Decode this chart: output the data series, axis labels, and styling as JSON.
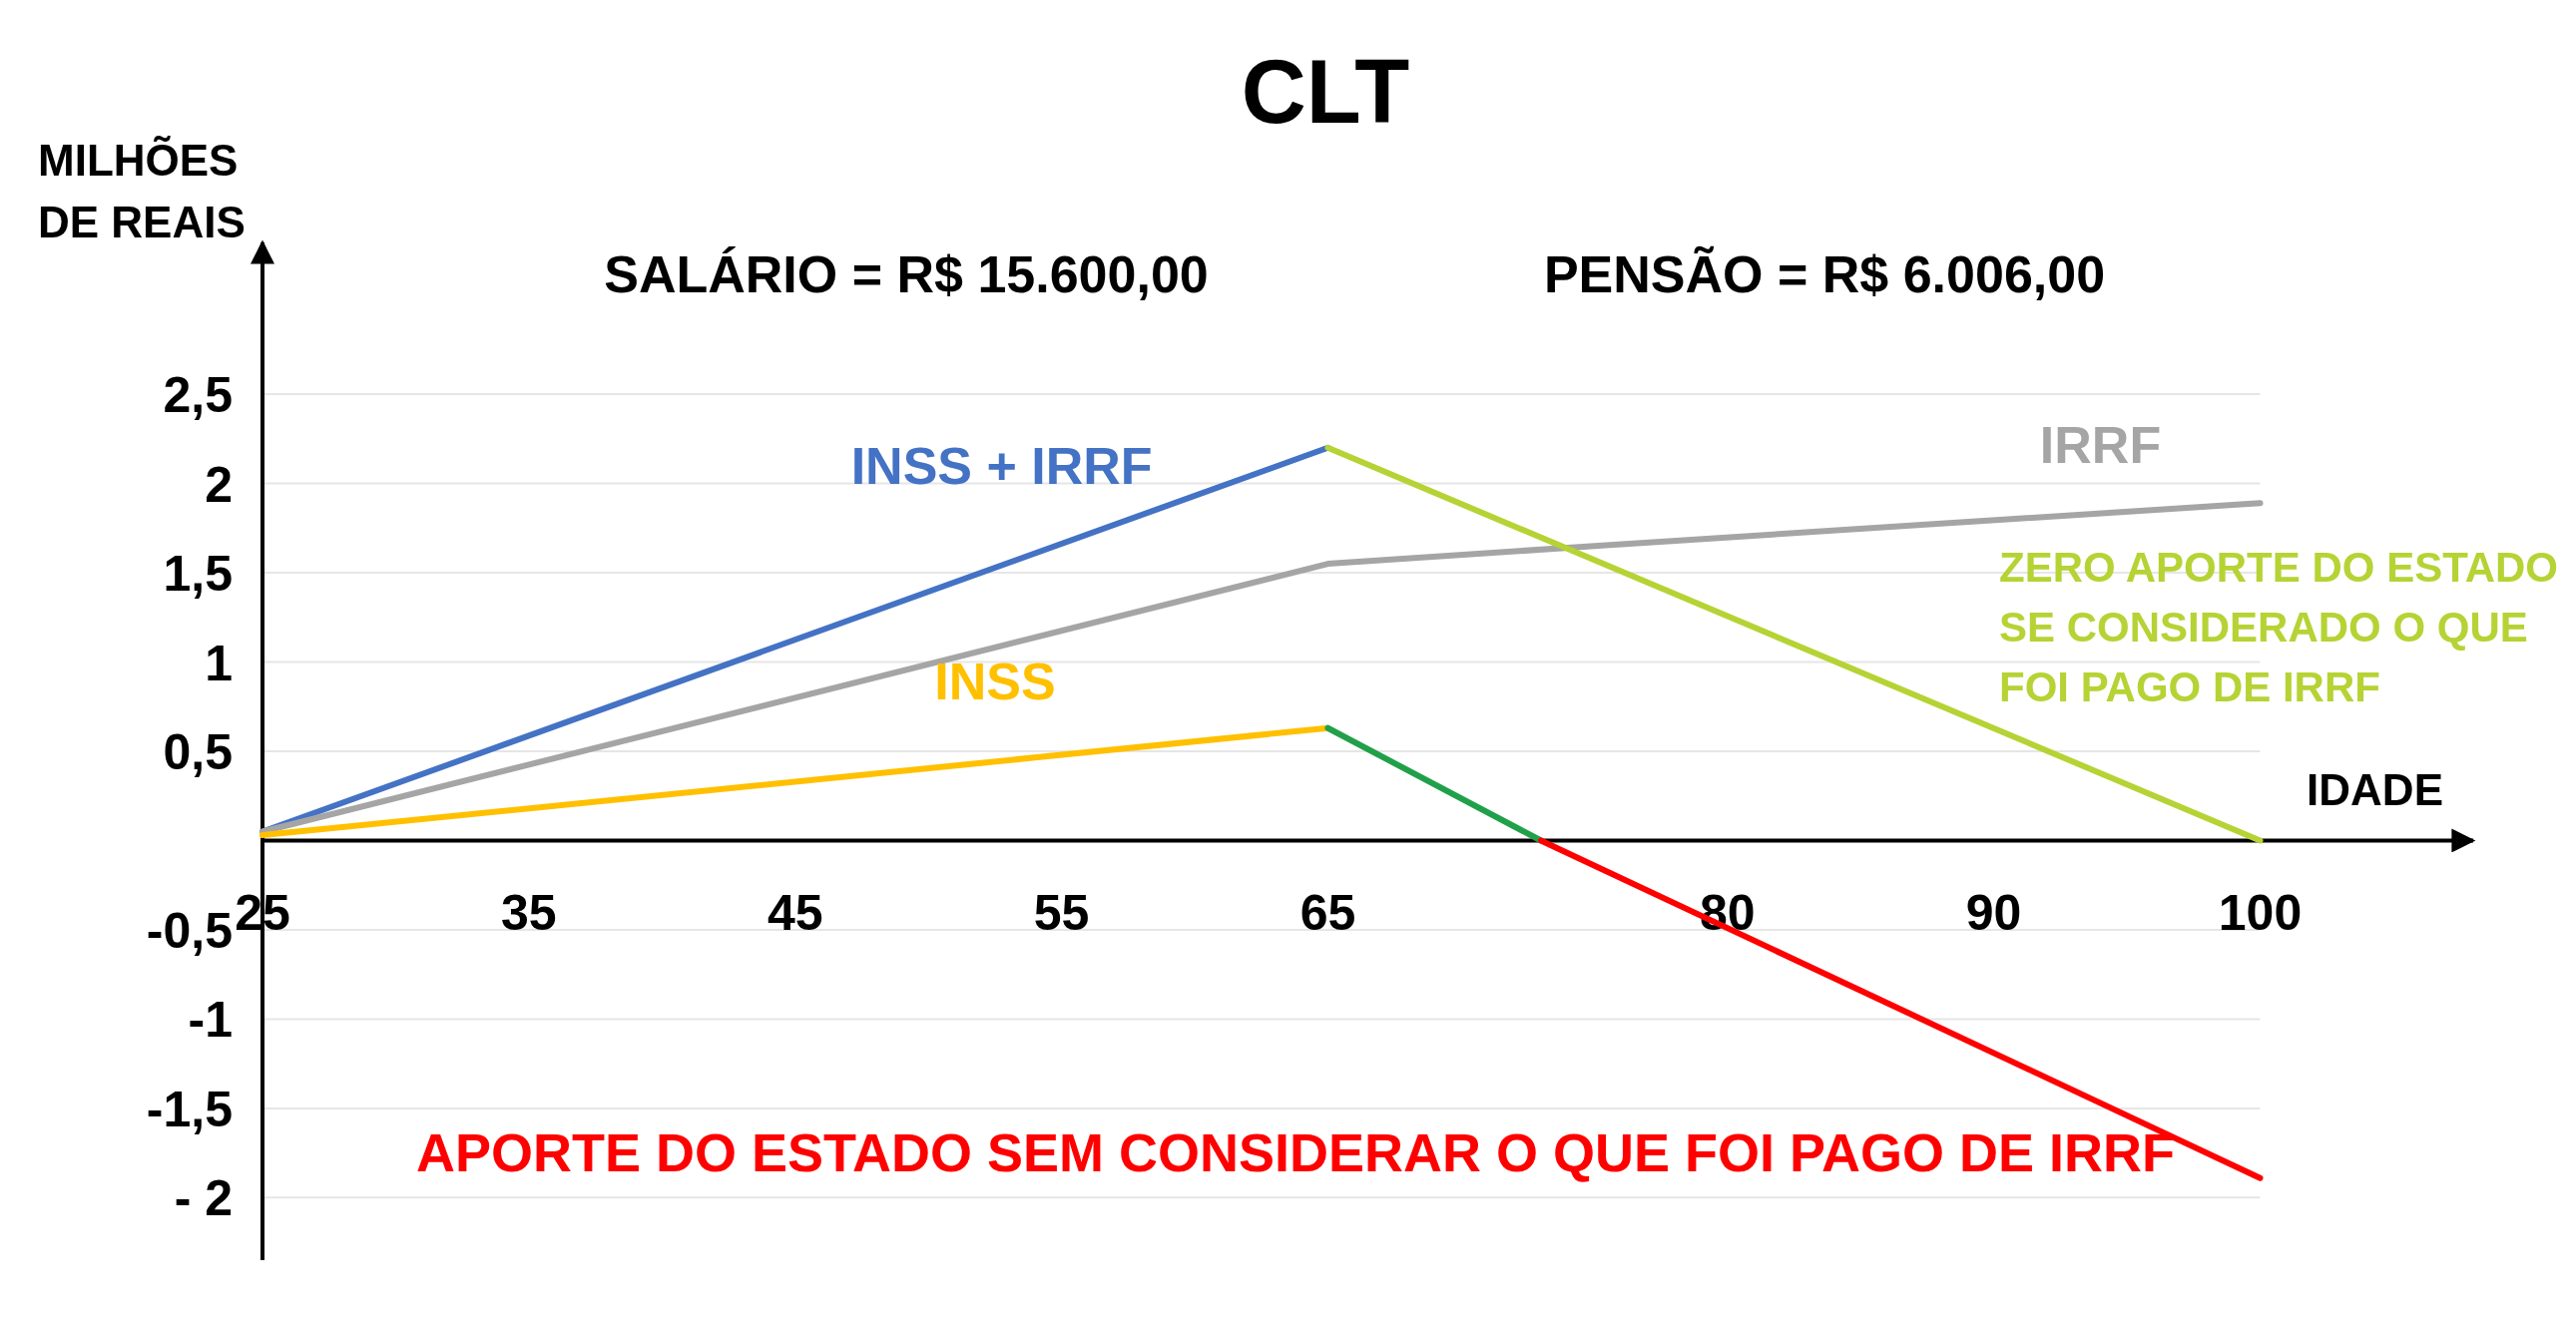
{
  "chart_data": {
    "type": "line",
    "title": "CLT",
    "xlabel": "IDADE",
    "ylabel": "MILHÕES DE REAIS",
    "annotations": [
      "SALÁRIO = R$ 15.600,00",
      "PENSÃO = R$ 6.006,00"
    ],
    "xlim": [
      25,
      108
    ],
    "xticks": [
      25,
      35,
      45,
      55,
      65,
      80,
      90,
      100
    ],
    "ylim": [
      -2.35,
      3.35
    ],
    "yticks": [
      {
        "value": -2,
        "label": "- 2"
      },
      {
        "value": -1.5,
        "label": "-1,5"
      },
      -1,
      {
        "value": -0.5,
        "label": "-0,5"
      },
      {
        "value": 0.5,
        "label": "0,5"
      },
      1,
      {
        "value": 1.5,
        "label": "1,5"
      },
      2,
      {
        "value": 2.5,
        "label": "2,5"
      }
    ],
    "grid": "y",
    "marker": "none",
    "line_style": "solid",
    "series": [
      {
        "name": "INSS + IRRF",
        "color": "#4472c4",
        "x": [
          25,
          65
        ],
        "values": [
          0.05,
          2.2
        ]
      },
      {
        "name": "IRRF",
        "color": "#a5a5a5",
        "x": [
          25,
          65,
          75,
          100
        ],
        "values": [
          0.05,
          1.55,
          1.65,
          1.89
        ]
      },
      {
        "name": "INSS",
        "color": "#ffc000",
        "x": [
          25,
          65
        ],
        "values": [
          0.03,
          0.63
        ]
      },
      {
        "name": "ZERO APORTE DO ESTADO SE CONSIDERADO O QUE FOI PAGO DE IRRF",
        "color": "#b5d334",
        "x": [
          65,
          100
        ],
        "values": [
          2.2,
          0
        ]
      },
      {
        "color": "#21a04a",
        "x": [
          65,
          73
        ],
        "values": [
          0.63,
          0
        ]
      },
      {
        "name": "APORTE DO ESTADO SEM CONSIDERAR O QUE FOI PAGO DE IRRF",
        "color": "#ff0000",
        "x": [
          73,
          100
        ],
        "values": [
          0,
          -1.89
        ]
      }
    ]
  }
}
